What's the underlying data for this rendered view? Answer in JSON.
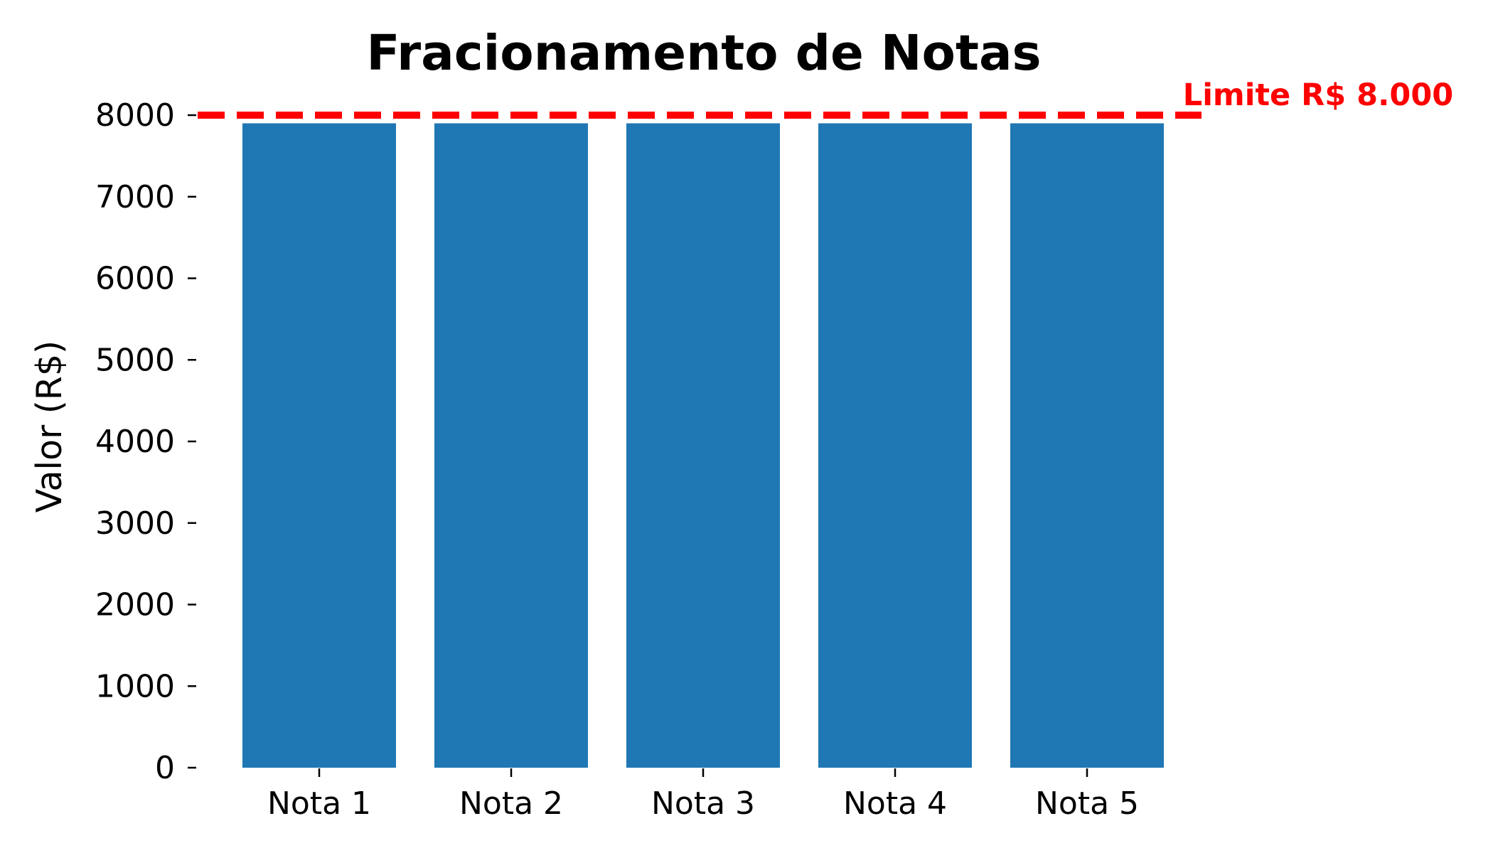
{
  "chart_data": {
    "type": "bar",
    "title": "Fracionamento de Notas",
    "xlabel": "",
    "ylabel": "Valor (R$)",
    "categories": [
      "Nota 1",
      "Nota 2",
      "Nota 3",
      "Nota 4",
      "Nota 5"
    ],
    "values": [
      7900,
      7900,
      7900,
      7900,
      7900
    ],
    "ylim": [
      0,
      8000
    ],
    "yticks": [
      0,
      1000,
      2000,
      3000,
      4000,
      5000,
      6000,
      7000,
      8000
    ],
    "grid": false,
    "bar_color": "#1f77b4",
    "reference_line": {
      "value": 8000,
      "label": "Limite R$ 8.000",
      "color": "#ff0000",
      "style": "dashed"
    }
  }
}
